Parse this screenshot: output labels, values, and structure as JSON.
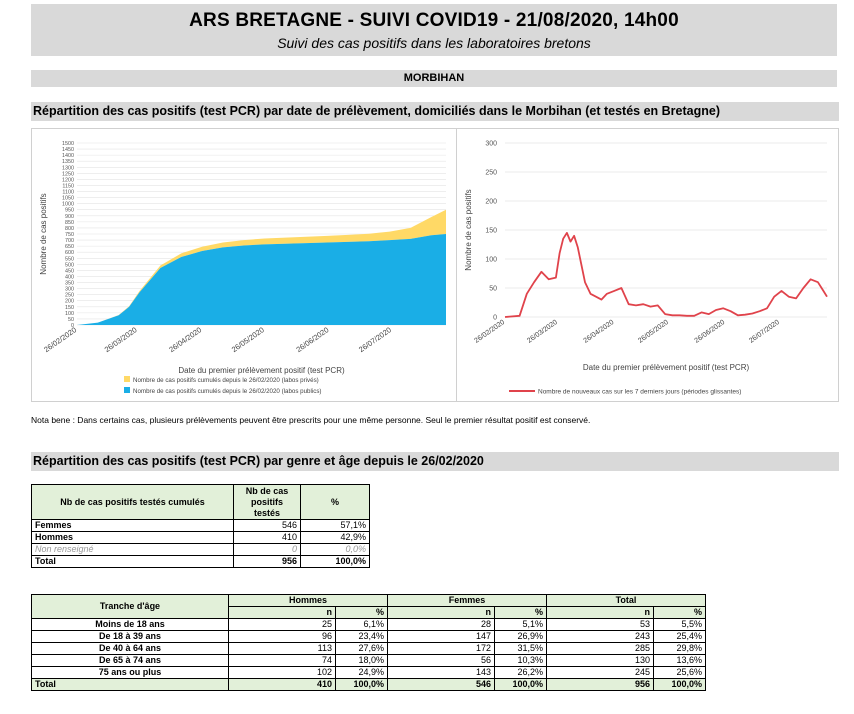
{
  "header": {
    "title": "ARS BRETAGNE - SUIVI COVID19 - 21/08/2020, 14h00",
    "subtitle": "Suivi des cas positifs dans les laboratoires bretons"
  },
  "department": "MORBIHAN",
  "section1_title": "Répartition des cas positifs (test PCR) par date de prélèvement, domiciliés dans le Morbihan (et testés en Bretagne)",
  "section2_title": "Répartition des cas positifs (test PCR) par genre et âge depuis le 26/02/2020",
  "note": "Nota bene : Dans certains cas, plusieurs prélèvements peuvent être prescrits pour une même personne. Seul le premier résultat positif est conservé.",
  "chart_data": [
    {
      "type": "area",
      "stacked": true,
      "ylabel": "Nombre de cas positifs",
      "xlabel": "Date du premier prélèvement positif (test PCR)",
      "ylim": [
        0,
        1500
      ],
      "yticks": [
        "0",
        "50",
        "100",
        "150",
        "200",
        "250",
        "300",
        "350",
        "400",
        "450",
        "500",
        "550",
        "600",
        "650",
        "700",
        "750",
        "800",
        "850",
        "900",
        "950",
        "1000",
        "1050",
        "1100",
        "1150",
        "1200",
        "1250",
        "1300",
        "1350",
        "1400",
        "1450",
        "1500"
      ],
      "x_ticks": [
        "26/02/2020",
        "26/03/2020",
        "26/04/2020",
        "26/05/2020",
        "26/06/2020",
        "26/07/2020"
      ],
      "x_days": [
        0,
        10,
        20,
        25,
        30,
        40,
        50,
        60,
        70,
        80,
        90,
        100,
        110,
        120,
        130,
        140,
        150,
        160,
        170,
        177
      ],
      "series": [
        {
          "name": "Nombre de cas positifs cumulés depuis le 26/02/2020 (labos publics)",
          "color": "#1aaee6",
          "values": [
            0,
            20,
            80,
            150,
            270,
            470,
            560,
            610,
            640,
            655,
            665,
            670,
            675,
            680,
            685,
            690,
            700,
            710,
            740,
            750
          ]
        },
        {
          "name": "Nombre de cas positifs cumulés depuis le 26/02/2020 (labos privés)",
          "color": "#ffd966",
          "values": [
            0,
            0,
            2,
            5,
            10,
            20,
            30,
            35,
            40,
            45,
            48,
            50,
            52,
            55,
            58,
            62,
            70,
            90,
            150,
            200
          ]
        }
      ],
      "legend": "bottom",
      "grid": true
    },
    {
      "type": "line",
      "ylabel": "Nombre de cas positifs",
      "xlabel": "Date du premier prélèvement positif (test PCR)",
      "ylim": [
        0,
        300
      ],
      "yticks": [
        "0",
        "50",
        "100",
        "150",
        "200",
        "250",
        "300"
      ],
      "x_ticks": [
        "26/02/2020",
        "26/03/2020",
        "26/04/2020",
        "26/05/2020",
        "26/06/2020",
        "26/07/2020"
      ],
      "series": [
        {
          "name": "Nombre de nouveaux cas sur les 7 derniers jours (périodes glissantes)",
          "color": "#e0434b",
          "x_days": [
            0,
            8,
            12,
            16,
            20,
            24,
            28,
            30,
            32,
            34,
            36,
            38,
            40,
            42,
            44,
            47,
            50,
            53,
            56,
            60,
            64,
            68,
            72,
            76,
            80,
            84,
            88,
            92,
            96,
            100,
            104,
            108,
            112,
            116,
            120,
            124,
            128,
            132,
            136,
            140,
            144,
            148,
            152,
            156,
            160,
            164,
            168,
            172,
            175,
            177
          ],
          "values": [
            0,
            2,
            40,
            60,
            78,
            65,
            68,
            110,
            135,
            145,
            130,
            140,
            120,
            90,
            60,
            40,
            35,
            30,
            40,
            45,
            50,
            22,
            20,
            22,
            18,
            20,
            5,
            3,
            3,
            2,
            2,
            8,
            5,
            12,
            15,
            10,
            3,
            4,
            6,
            10,
            15,
            35,
            45,
            35,
            32,
            50,
            65,
            60,
            45,
            35
          ]
        }
      ],
      "legend": "bottom",
      "grid": true
    }
  ],
  "table1": {
    "headers": [
      "Nb de cas positifs testés cumulés",
      "Nb de cas positifs testés",
      "%"
    ],
    "rows": [
      [
        "Femmes",
        "546",
        "57,1%"
      ],
      [
        "Hommes",
        "410",
        "42,9%"
      ],
      [
        "Non renseigné",
        "0",
        "0,0%"
      ],
      [
        "Total",
        "956",
        "100,0%"
      ]
    ]
  },
  "table2": {
    "col_label": "Tranche d'âge",
    "groups": [
      "Hommes",
      "Femmes",
      "Total"
    ],
    "sub": [
      "n",
      "%"
    ],
    "rows": [
      [
        "Moins de 18 ans",
        "25",
        "6,1%",
        "28",
        "5,1%",
        "53",
        "5,5%"
      ],
      [
        "De 18 à 39 ans",
        "96",
        "23,4%",
        "147",
        "26,9%",
        "243",
        "25,4%"
      ],
      [
        "De 40 à 64 ans",
        "113",
        "27,6%",
        "172",
        "31,5%",
        "285",
        "29,8%"
      ],
      [
        "De 65 à 74 ans",
        "74",
        "18,0%",
        "56",
        "10,3%",
        "130",
        "13,6%"
      ],
      [
        "75 ans ou plus",
        "102",
        "24,9%",
        "143",
        "26,2%",
        "245",
        "25,6%"
      ],
      [
        "Total",
        "410",
        "100,0%",
        "546",
        "100,0%",
        "956",
        "100,0%"
      ]
    ]
  }
}
